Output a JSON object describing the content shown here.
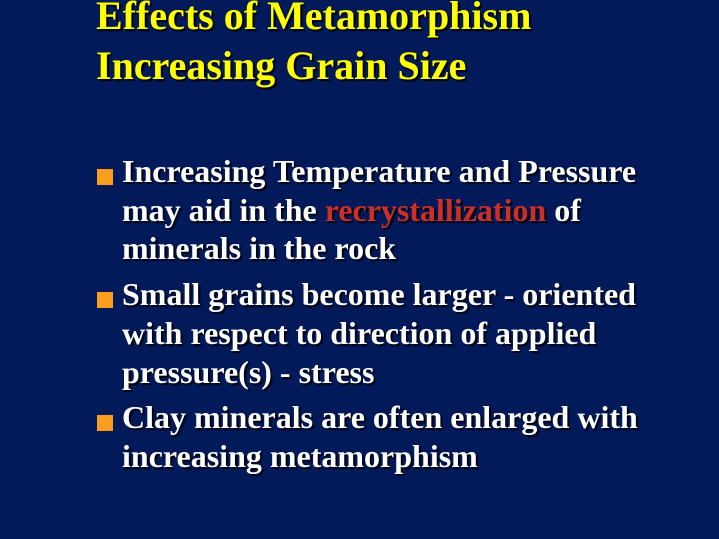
{
  "slide": {
    "type": "presentation-slide",
    "background_color": "#02195A",
    "title": {
      "line1": "Effects of Metamorphism",
      "line2": "Increasing Grain Size",
      "color": "#FFFF00"
    },
    "bullet_marker_color": "#FB9E1D",
    "body_text_color": "#FFFFFF",
    "highlight_color": "#CC2F27",
    "bullets": [
      {
        "l1": "Increasing Temperature and Pressure",
        "l2_pre": "may aid in the ",
        "l2_highlight": "recrystallization",
        "l2_post": " of",
        "l3": "minerals in the rock"
      },
      {
        "l1": "Small grains become larger - oriented",
        "l2": "with respect to direction of applied",
        "l3": "pressure(s) - stress"
      },
      {
        "l1": "Clay minerals are often enlarged with",
        "l2": "increasing metamorphism"
      }
    ]
  }
}
